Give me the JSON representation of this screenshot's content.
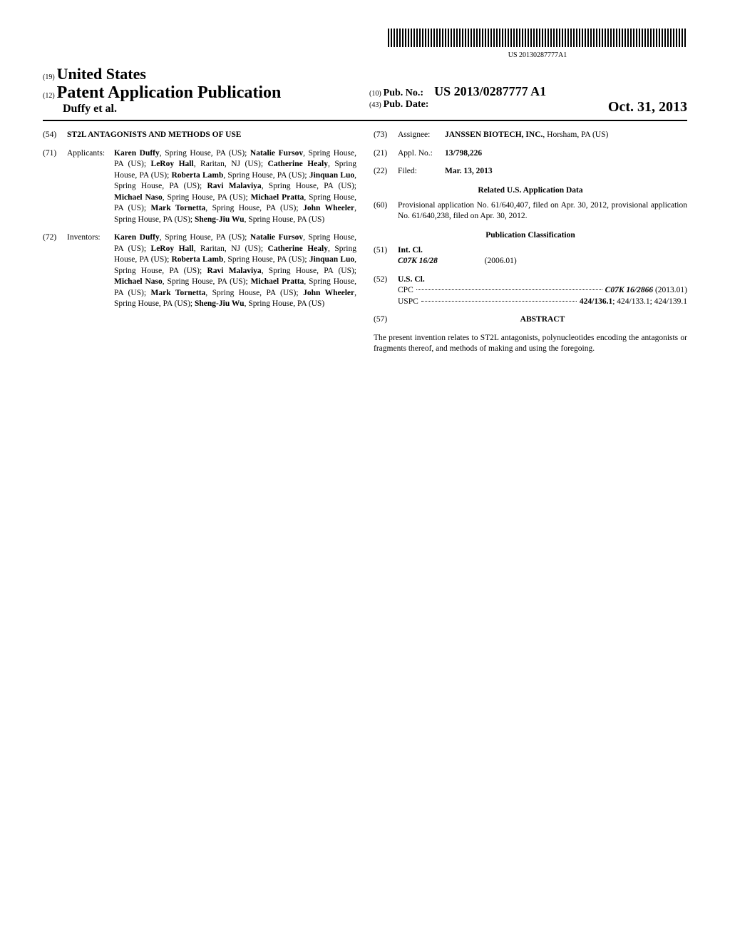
{
  "barcode_label": "US 20130287777A1",
  "header": {
    "code19": "(19)",
    "country": "United States",
    "code12": "(12)",
    "pub_type": "Patent Application Publication",
    "authors": "Duffy et al.",
    "code10": "(10)",
    "pub_no_label": "Pub. No.:",
    "pub_no": "US 2013/0287777 A1",
    "code43": "(43)",
    "pub_date_label": "Pub. Date:",
    "pub_date": "Oct. 31, 2013"
  },
  "title": {
    "code": "(54)",
    "text": "ST2L ANTAGONISTS AND METHODS OF USE"
  },
  "applicants": {
    "code": "(71)",
    "label": "Applicants:",
    "list": [
      {
        "name": "Karen Duffy",
        "loc": ", Spring House, PA (US); "
      },
      {
        "name": "Natalie Fursov",
        "loc": ", Spring House, PA (US); "
      },
      {
        "name": "LeRoy Hall",
        "loc": ", Raritan, NJ (US); "
      },
      {
        "name": "Catherine Healy",
        "loc": ", Spring House, PA (US); "
      },
      {
        "name": "Roberta Lamb",
        "loc": ", Spring House, PA (US); "
      },
      {
        "name": "Jinquan Luo",
        "loc": ", Spring House, PA (US); "
      },
      {
        "name": "Ravi Malaviya",
        "loc": ", Spring House, PA (US); "
      },
      {
        "name": "Michael Naso",
        "loc": ", Spring House, PA (US); "
      },
      {
        "name": "Michael Pratta",
        "loc": ", Spring House, PA (US); "
      },
      {
        "name": "Mark Tornetta",
        "loc": ", Spring House, PA (US); "
      },
      {
        "name": "John Wheeler",
        "loc": ", Spring House, PA (US); "
      },
      {
        "name": "Sheng-Jiu Wu",
        "loc": ", Spring House, PA (US)"
      }
    ]
  },
  "inventors": {
    "code": "(72)",
    "label": "Inventors:",
    "list": [
      {
        "name": "Karen Duffy",
        "loc": ", Spring House, PA (US); "
      },
      {
        "name": "Natalie Fursov",
        "loc": ", Spring House, PA (US); "
      },
      {
        "name": "LeRoy Hall",
        "loc": ", Raritan, NJ (US); "
      },
      {
        "name": "Catherine Healy",
        "loc": ", Spring House, PA (US); "
      },
      {
        "name": "Roberta Lamb",
        "loc": ", Spring House, PA (US); "
      },
      {
        "name": "Jinquan Luo",
        "loc": ", Spring House, PA (US); "
      },
      {
        "name": "Ravi Malaviya",
        "loc": ", Spring House, PA (US); "
      },
      {
        "name": "Michael Naso",
        "loc": ", Spring House, PA (US); "
      },
      {
        "name": "Michael Pratta",
        "loc": ", Spring House, PA (US); "
      },
      {
        "name": "Mark Tornetta",
        "loc": ", Spring House, PA (US); "
      },
      {
        "name": "John Wheeler",
        "loc": ", Spring House, PA (US); "
      },
      {
        "name": "Sheng-Jiu Wu",
        "loc": ", Spring House, PA (US)"
      }
    ]
  },
  "assignee": {
    "code": "(73)",
    "label": "Assignee:",
    "name": "JANSSEN BIOTECH, INC.",
    "loc": ", Horsham, PA (US)"
  },
  "appl_no": {
    "code": "(21)",
    "label": "Appl. No.:",
    "value": "13/798,226"
  },
  "filed": {
    "code": "(22)",
    "label": "Filed:",
    "value": "Mar. 13, 2013"
  },
  "related": {
    "heading": "Related U.S. Application Data",
    "code": "(60)",
    "text": "Provisional application No. 61/640,407, filed on Apr. 30, 2012, provisional application No. 61/640,238, filed on Apr. 30, 2012."
  },
  "classification": {
    "heading": "Publication Classification",
    "int_cl": {
      "code": "(51)",
      "label": "Int. Cl.",
      "class": "C07K 16/28",
      "version": "(2006.01)"
    },
    "us_cl": {
      "code": "(52)",
      "label": "U.S. Cl.",
      "cpc_label": "CPC",
      "cpc_value": "C07K 16/2866",
      "cpc_version": " (2013.01)",
      "uspc_label": "USPC",
      "uspc_value": "424/136.1",
      "uspc_extra": "; 424/133.1; 424/139.1"
    }
  },
  "abstract": {
    "code": "(57)",
    "heading": "ABSTRACT",
    "text": "The present invention relates to ST2L antagonists, polynucleotides encoding the antagonists or fragments thereof, and methods of making and using the foregoing."
  }
}
